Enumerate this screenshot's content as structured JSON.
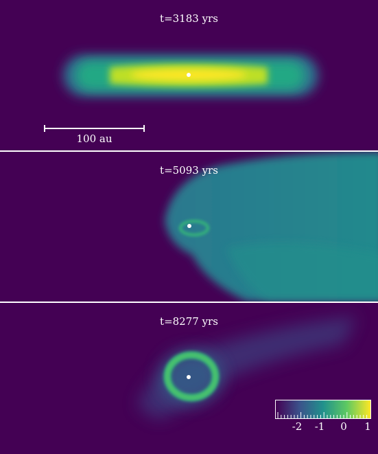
{
  "panels": [
    {
      "label": "t=3183 yrs"
    },
    {
      "label": "t=5093 yrs"
    },
    {
      "label": "t=8277 yrs"
    }
  ],
  "scalebar": {
    "label": "100 au"
  },
  "colorbar": {
    "ticks": [
      "-2",
      "-1",
      "0",
      "1"
    ],
    "colormap_stops": [
      "#440154",
      "#3b528b",
      "#21918c",
      "#5ec962",
      "#fde725"
    ]
  },
  "colors": {
    "background": "#440154",
    "divider": "#ffffff",
    "star": "#ffffff"
  }
}
